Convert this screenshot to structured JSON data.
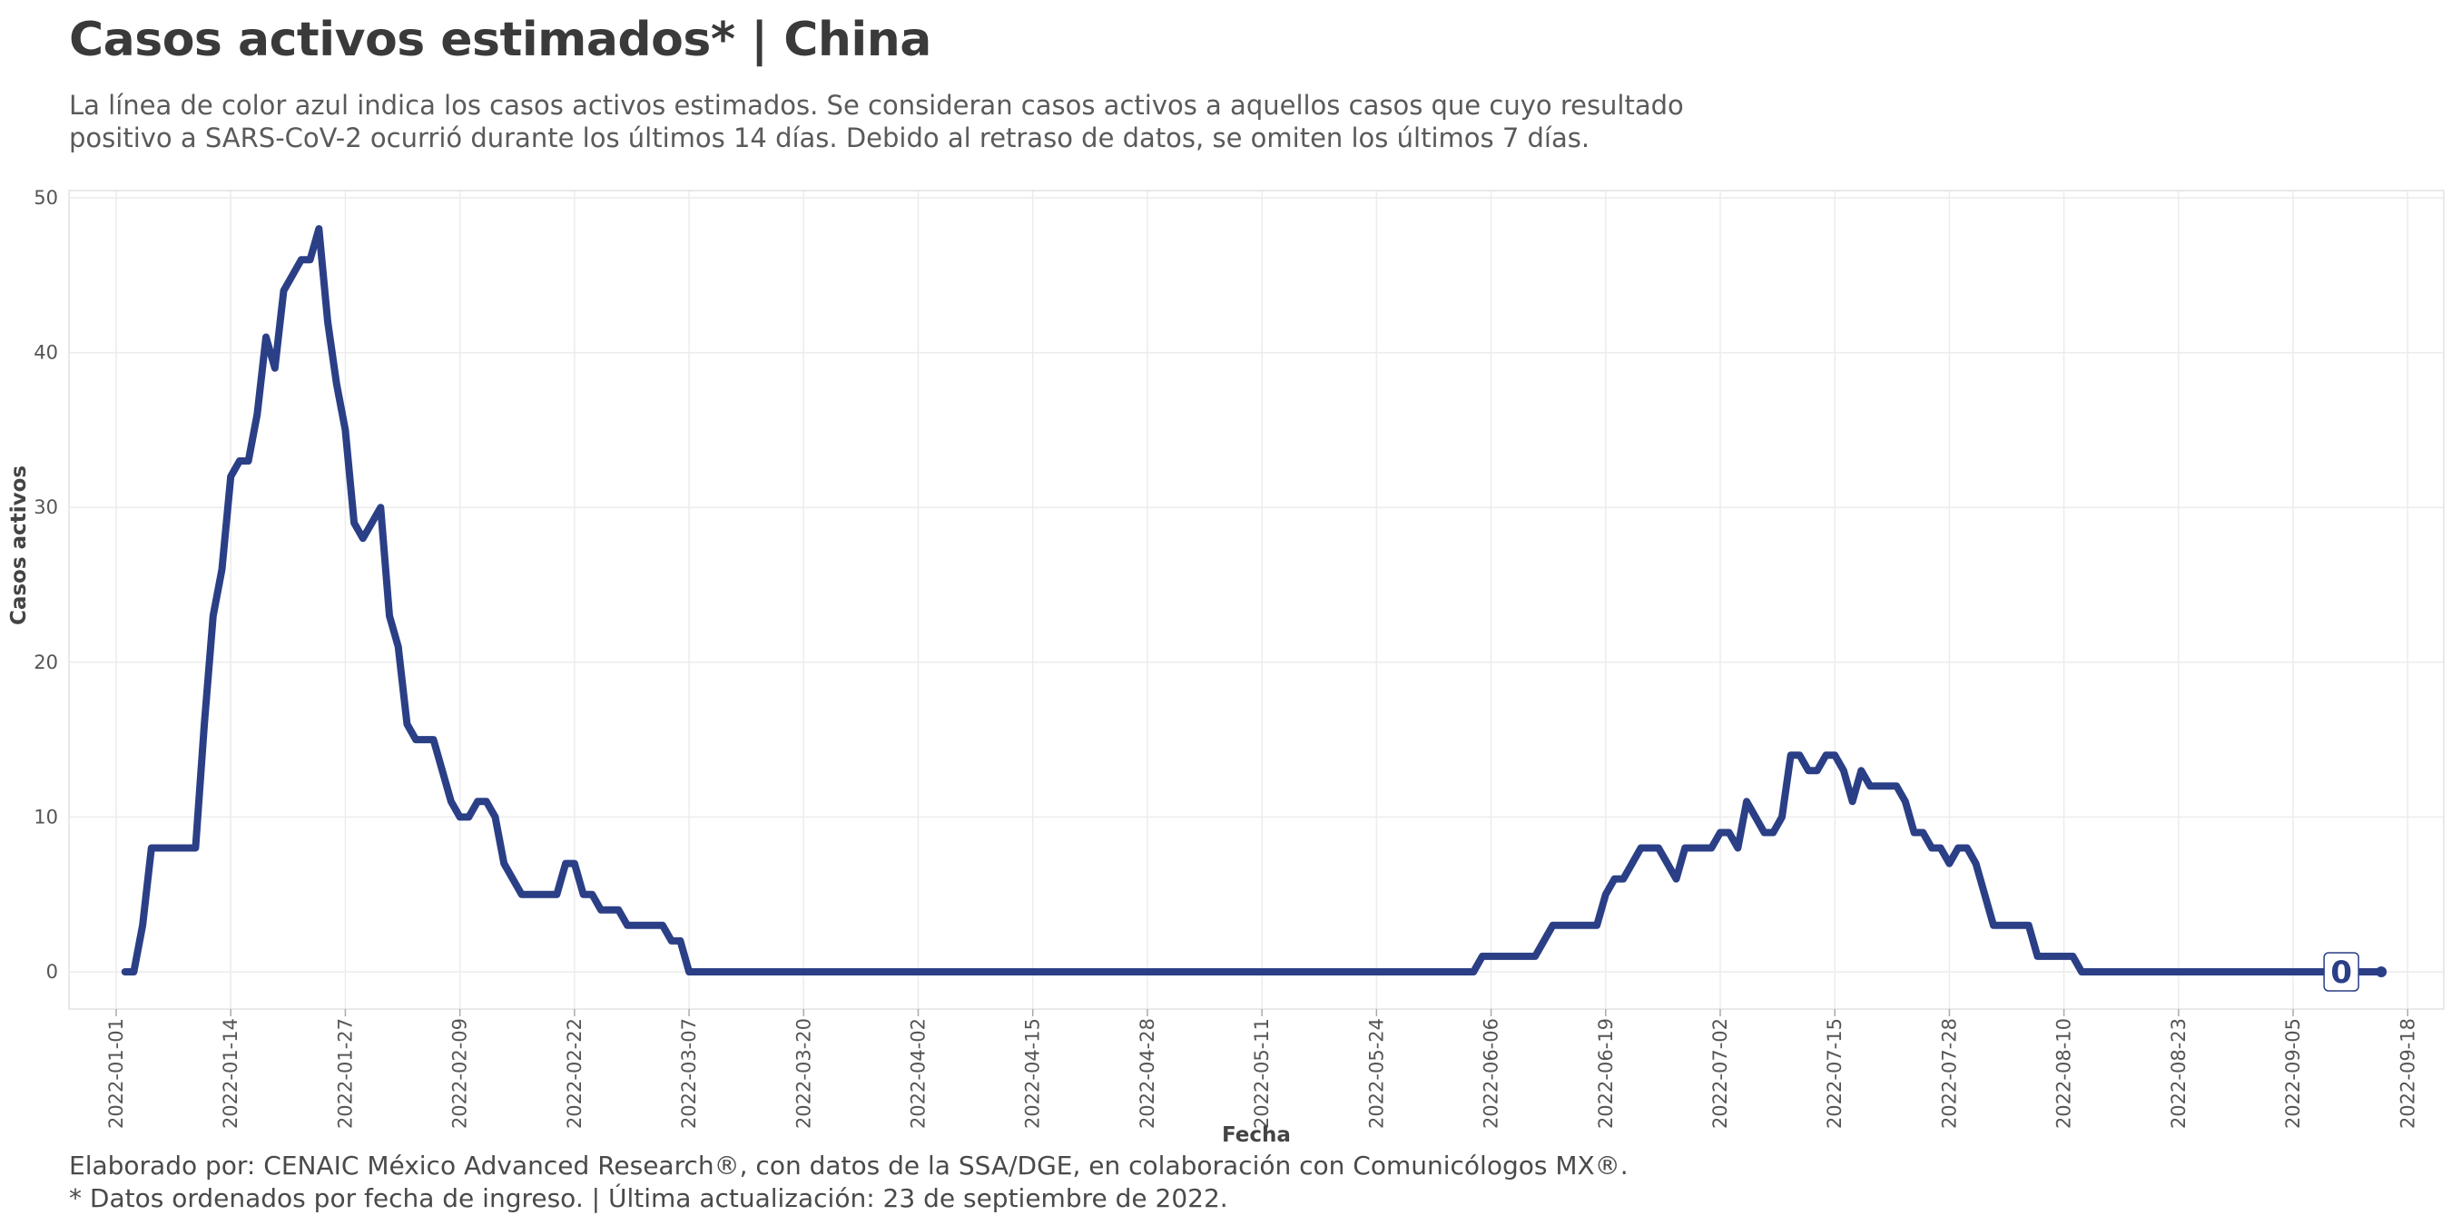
{
  "header": {
    "title": "Casos activos estimados* | China",
    "subtitle": "La línea de color azul indica los casos activos estimados. Se consideran casos activos a aquellos casos que cuyo resultado positivo a SARS-CoV-2 ocurrió durante los últimos 14 días. Debido al retraso de datos, se omiten los últimos 7 días."
  },
  "footer": {
    "line1": "Elaborado por: CENAIC México Advanced Research®, con datos de la SSA/DGE, en colaboración con Comunicólogos MX®.",
    "line2": "* Datos ordenados por fecha de ingreso. | Última actualización: 23 de septiembre de 2022."
  },
  "colors": {
    "series": "#2b3f86",
    "grid": "#ececec"
  },
  "chart_data": {
    "type": "line",
    "title": "Casos activos estimados* | China",
    "xlabel": "Fecha",
    "ylabel": "Casos activos",
    "ylim": [
      0,
      50
    ],
    "xlim": [
      "2022-01-01",
      "2022-09-19"
    ],
    "yticks": [
      0,
      10,
      20,
      30,
      40,
      50
    ],
    "xticks": [
      "2022-01-01",
      "2022-01-14",
      "2022-01-27",
      "2022-02-09",
      "2022-02-22",
      "2022-03-07",
      "2022-03-20",
      "2022-04-02",
      "2022-04-15",
      "2022-04-28",
      "2022-05-11",
      "2022-05-24",
      "2022-06-06",
      "2022-06-19",
      "2022-07-02",
      "2022-07-15",
      "2022-07-28",
      "2022-08-10",
      "2022-08-23",
      "2022-09-05",
      "2022-09-18"
    ],
    "grid": true,
    "end_label": "0",
    "series": [
      {
        "x": [
          "2022-01-02",
          "2022-01-03",
          "2022-01-04",
          "2022-01-05",
          "2022-01-06",
          "2022-01-07",
          "2022-01-08",
          "2022-01-09",
          "2022-01-10",
          "2022-01-11",
          "2022-01-12",
          "2022-01-13",
          "2022-01-14",
          "2022-01-15",
          "2022-01-16",
          "2022-01-17",
          "2022-01-18",
          "2022-01-19",
          "2022-01-20",
          "2022-01-21",
          "2022-01-22",
          "2022-01-23",
          "2022-01-24",
          "2022-01-25",
          "2022-01-26",
          "2022-01-27",
          "2022-01-28",
          "2022-01-29",
          "2022-01-30",
          "2022-01-31",
          "2022-02-01",
          "2022-02-02",
          "2022-02-03",
          "2022-02-04",
          "2022-02-05",
          "2022-02-06",
          "2022-02-07",
          "2022-02-08",
          "2022-02-09",
          "2022-02-10",
          "2022-02-11",
          "2022-02-12",
          "2022-02-13",
          "2022-02-14",
          "2022-02-15",
          "2022-02-16",
          "2022-02-17",
          "2022-02-18",
          "2022-02-19",
          "2022-02-20",
          "2022-02-21",
          "2022-02-22",
          "2022-02-23",
          "2022-02-24",
          "2022-02-25",
          "2022-02-26",
          "2022-02-27",
          "2022-02-28",
          "2022-03-01",
          "2022-03-02",
          "2022-03-03",
          "2022-03-04",
          "2022-03-05",
          "2022-03-06",
          "2022-03-07",
          "2022-06-04",
          "2022-06-05",
          "2022-06-06",
          "2022-06-07",
          "2022-06-08",
          "2022-06-09",
          "2022-06-10",
          "2022-06-11",
          "2022-06-12",
          "2022-06-13",
          "2022-06-14",
          "2022-06-15",
          "2022-06-16",
          "2022-06-17",
          "2022-06-18",
          "2022-06-19",
          "2022-06-20",
          "2022-06-21",
          "2022-06-22",
          "2022-06-23",
          "2022-06-24",
          "2022-06-25",
          "2022-06-26",
          "2022-06-27",
          "2022-06-28",
          "2022-06-29",
          "2022-06-30",
          "2022-07-01",
          "2022-07-02",
          "2022-07-03",
          "2022-07-04",
          "2022-07-05",
          "2022-07-06",
          "2022-07-07",
          "2022-07-08",
          "2022-07-09",
          "2022-07-10",
          "2022-07-11",
          "2022-07-12",
          "2022-07-13",
          "2022-07-14",
          "2022-07-15",
          "2022-07-16",
          "2022-07-17",
          "2022-07-18",
          "2022-07-19",
          "2022-07-20",
          "2022-07-21",
          "2022-07-22",
          "2022-07-23",
          "2022-07-24",
          "2022-07-25",
          "2022-07-26",
          "2022-07-27",
          "2022-07-28",
          "2022-07-29",
          "2022-07-30",
          "2022-07-31",
          "2022-08-01",
          "2022-08-02",
          "2022-08-03",
          "2022-08-04",
          "2022-08-05",
          "2022-08-06",
          "2022-08-07",
          "2022-08-08",
          "2022-08-09",
          "2022-08-10",
          "2022-08-11",
          "2022-08-12",
          "2022-08-13",
          "2022-08-14",
          "2022-08-15",
          "2022-09-15"
        ],
        "y": [
          0,
          0,
          3,
          8,
          8,
          8,
          8,
          8,
          8,
          16,
          23,
          26,
          32,
          33,
          33,
          36,
          41,
          39,
          44,
          45,
          46,
          46,
          48,
          42,
          38,
          35,
          29,
          28,
          29,
          30,
          23,
          21,
          16,
          15,
          15,
          15,
          13,
          11,
          10,
          10,
          11,
          11,
          10,
          7,
          6,
          5,
          5,
          5,
          5,
          5,
          7,
          7,
          5,
          5,
          4,
          4,
          4,
          3,
          3,
          3,
          3,
          3,
          2,
          2,
          0,
          0,
          1,
          1,
          1,
          1,
          1,
          1,
          1,
          2,
          3,
          3,
          3,
          3,
          3,
          3,
          5,
          6,
          6,
          7,
          8,
          8,
          8,
          7,
          6,
          8,
          8,
          8,
          8,
          9,
          9,
          8,
          11,
          10,
          9,
          9,
          10,
          14,
          14,
          13,
          13,
          14,
          14,
          13,
          11,
          13,
          12,
          12,
          12,
          12,
          11,
          9,
          9,
          8,
          8,
          7,
          8,
          8,
          7,
          5,
          3,
          3,
          3,
          3,
          3,
          1,
          1,
          1,
          1,
          1,
          0,
          0,
          0,
          0,
          0
        ]
      }
    ]
  }
}
